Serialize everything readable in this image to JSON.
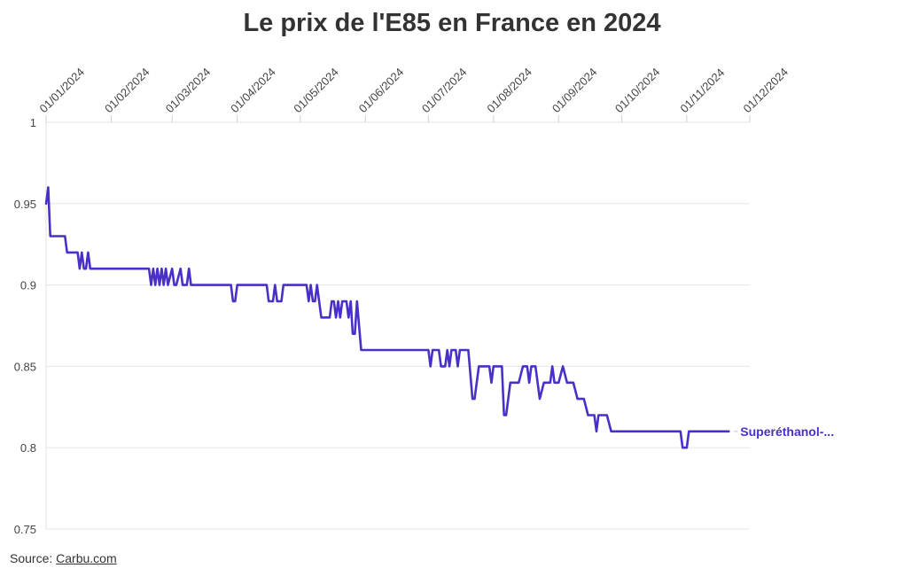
{
  "chart_data": {
    "type": "line",
    "title": "Le prix de l'E85 en France en 2024",
    "xlabel": "",
    "ylabel": "",
    "x_range": [
      "2024-01-01",
      "2024-12-01"
    ],
    "ylim": [
      0.75,
      1.0
    ],
    "y_ticks": [
      1,
      0.95,
      0.9,
      0.85,
      0.8,
      0.75
    ],
    "y_tick_labels": [
      "1",
      "0.95",
      "0.9",
      "0.85",
      "0.8",
      "0.75"
    ],
    "x_ticks": [
      "2024-01-01",
      "2024-02-01",
      "2024-03-01",
      "2024-04-01",
      "2024-05-01",
      "2024-06-01",
      "2024-07-01",
      "2024-08-01",
      "2024-09-01",
      "2024-10-01",
      "2024-11-01",
      "2024-12-01"
    ],
    "x_tick_labels": [
      "01/01/2024",
      "01/02/2024",
      "01/03/2024",
      "01/04/2024",
      "01/05/2024",
      "01/06/2024",
      "01/07/2024",
      "01/08/2024",
      "01/09/2024",
      "01/10/2024",
      "01/11/2024",
      "01/12/2024"
    ],
    "grid": true,
    "series": [
      {
        "name": "Superéthanol-E85",
        "label": "Superéthanol-...",
        "color": "#4a2fc8",
        "points": [
          [
            "2024-01-01",
            0.95
          ],
          [
            "2024-01-02",
            0.96
          ],
          [
            "2024-01-03",
            0.93
          ],
          [
            "2024-01-10",
            0.93
          ],
          [
            "2024-01-11",
            0.92
          ],
          [
            "2024-01-16",
            0.92
          ],
          [
            "2024-01-17",
            0.91
          ],
          [
            "2024-01-18",
            0.92
          ],
          [
            "2024-01-19",
            0.91
          ],
          [
            "2024-01-20",
            0.91
          ],
          [
            "2024-01-21",
            0.92
          ],
          [
            "2024-01-22",
            0.91
          ],
          [
            "2024-02-19",
            0.91
          ],
          [
            "2024-02-20",
            0.9
          ],
          [
            "2024-02-21",
            0.91
          ],
          [
            "2024-02-22",
            0.9
          ],
          [
            "2024-02-23",
            0.91
          ],
          [
            "2024-02-24",
            0.9
          ],
          [
            "2024-02-25",
            0.91
          ],
          [
            "2024-02-26",
            0.9
          ],
          [
            "2024-02-27",
            0.91
          ],
          [
            "2024-02-28",
            0.9
          ],
          [
            "2024-03-01",
            0.91
          ],
          [
            "2024-03-02",
            0.9
          ],
          [
            "2024-03-03",
            0.9
          ],
          [
            "2024-03-05",
            0.91
          ],
          [
            "2024-03-06",
            0.9
          ],
          [
            "2024-03-08",
            0.9
          ],
          [
            "2024-03-09",
            0.91
          ],
          [
            "2024-03-10",
            0.9
          ],
          [
            "2024-03-29",
            0.9
          ],
          [
            "2024-03-30",
            0.89
          ],
          [
            "2024-03-31",
            0.89
          ],
          [
            "2024-04-01",
            0.9
          ],
          [
            "2024-04-15",
            0.9
          ],
          [
            "2024-04-16",
            0.89
          ],
          [
            "2024-04-18",
            0.89
          ],
          [
            "2024-04-19",
            0.9
          ],
          [
            "2024-04-20",
            0.89
          ],
          [
            "2024-04-22",
            0.89
          ],
          [
            "2024-04-23",
            0.9
          ],
          [
            "2024-05-04",
            0.9
          ],
          [
            "2024-05-05",
            0.89
          ],
          [
            "2024-05-06",
            0.9
          ],
          [
            "2024-05-07",
            0.89
          ],
          [
            "2024-05-08",
            0.89
          ],
          [
            "2024-05-09",
            0.9
          ],
          [
            "2024-05-10",
            0.89
          ],
          [
            "2024-05-11",
            0.88
          ],
          [
            "2024-05-15",
            0.88
          ],
          [
            "2024-05-16",
            0.89
          ],
          [
            "2024-05-17",
            0.89
          ],
          [
            "2024-05-18",
            0.88
          ],
          [
            "2024-05-19",
            0.89
          ],
          [
            "2024-05-20",
            0.88
          ],
          [
            "2024-05-21",
            0.89
          ],
          [
            "2024-05-23",
            0.89
          ],
          [
            "2024-05-24",
            0.88
          ],
          [
            "2024-05-25",
            0.89
          ],
          [
            "2024-05-26",
            0.87
          ],
          [
            "2024-05-27",
            0.87
          ],
          [
            "2024-05-28",
            0.89
          ],
          [
            "2024-05-30",
            0.86
          ],
          [
            "2024-07-01",
            0.86
          ],
          [
            "2024-07-02",
            0.85
          ],
          [
            "2024-07-03",
            0.86
          ],
          [
            "2024-07-06",
            0.86
          ],
          [
            "2024-07-07",
            0.85
          ],
          [
            "2024-07-09",
            0.85
          ],
          [
            "2024-07-10",
            0.86
          ],
          [
            "2024-07-11",
            0.85
          ],
          [
            "2024-07-12",
            0.86
          ],
          [
            "2024-07-14",
            0.86
          ],
          [
            "2024-07-15",
            0.85
          ],
          [
            "2024-07-16",
            0.86
          ],
          [
            "2024-07-20",
            0.86
          ],
          [
            "2024-07-22",
            0.83
          ],
          [
            "2024-07-23",
            0.83
          ],
          [
            "2024-07-25",
            0.85
          ],
          [
            "2024-07-30",
            0.85
          ],
          [
            "2024-07-31",
            0.84
          ],
          [
            "2024-08-01",
            0.85
          ],
          [
            "2024-08-05",
            0.85
          ],
          [
            "2024-08-06",
            0.82
          ],
          [
            "2024-08-07",
            0.82
          ],
          [
            "2024-08-09",
            0.84
          ],
          [
            "2024-08-13",
            0.84
          ],
          [
            "2024-08-15",
            0.85
          ],
          [
            "2024-08-17",
            0.85
          ],
          [
            "2024-08-18",
            0.84
          ],
          [
            "2024-08-19",
            0.85
          ],
          [
            "2024-08-21",
            0.85
          ],
          [
            "2024-08-23",
            0.83
          ],
          [
            "2024-08-25",
            0.84
          ],
          [
            "2024-08-28",
            0.84
          ],
          [
            "2024-08-29",
            0.85
          ],
          [
            "2024-08-30",
            0.84
          ],
          [
            "2024-09-01",
            0.84
          ],
          [
            "2024-09-03",
            0.85
          ],
          [
            "2024-09-05",
            0.84
          ],
          [
            "2024-09-08",
            0.84
          ],
          [
            "2024-09-10",
            0.83
          ],
          [
            "2024-09-13",
            0.83
          ],
          [
            "2024-09-15",
            0.82
          ],
          [
            "2024-09-18",
            0.82
          ],
          [
            "2024-09-19",
            0.81
          ],
          [
            "2024-09-20",
            0.82
          ],
          [
            "2024-09-24",
            0.82
          ],
          [
            "2024-09-26",
            0.81
          ],
          [
            "2024-10-29",
            0.81
          ],
          [
            "2024-10-30",
            0.8
          ],
          [
            "2024-11-01",
            0.8
          ],
          [
            "2024-11-02",
            0.81
          ],
          [
            "2024-11-21",
            0.81
          ]
        ]
      }
    ]
  },
  "source": {
    "prefix": "Source: ",
    "link_text": "Carbu.com"
  }
}
